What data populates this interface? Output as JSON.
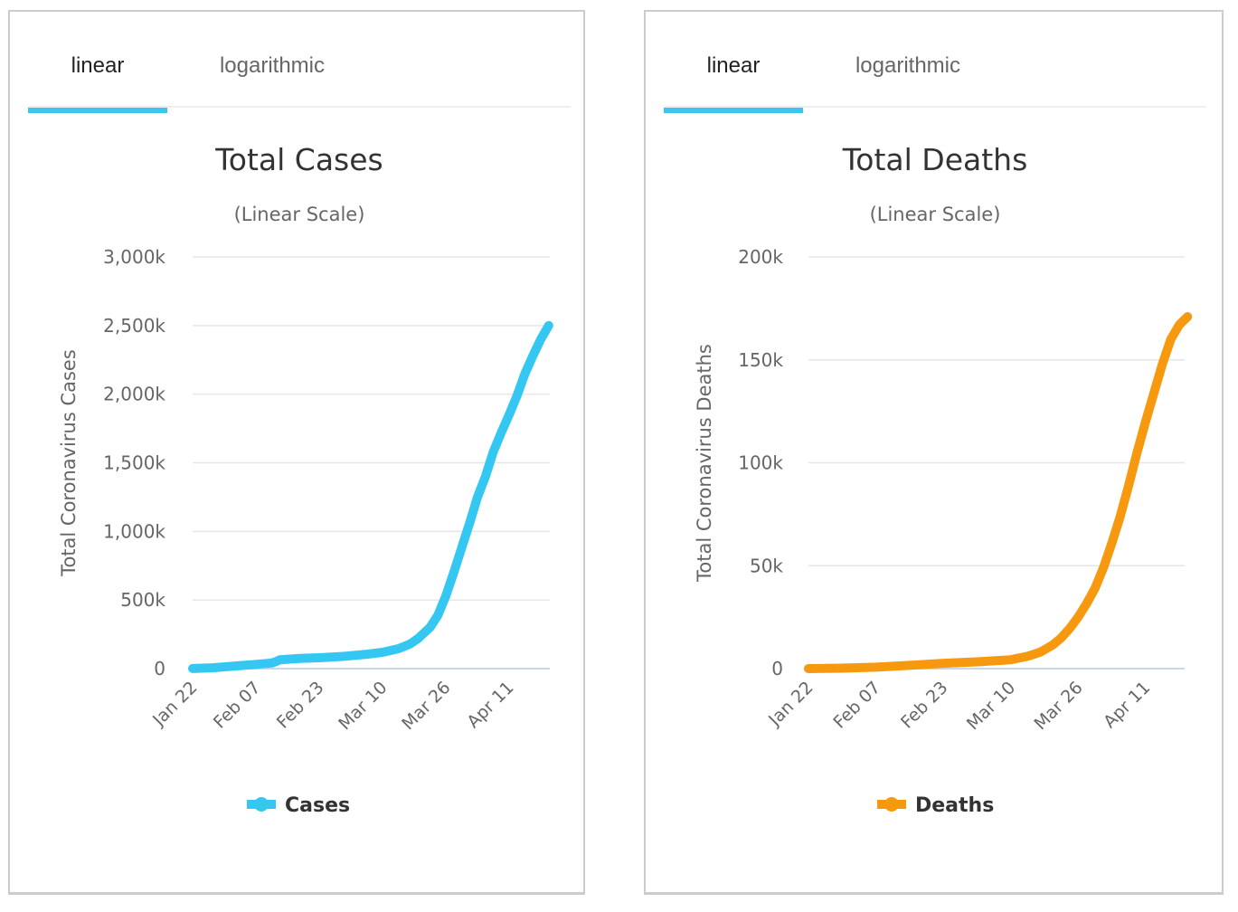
{
  "panels": [
    {
      "tabs": [
        {
          "label": "linear",
          "active": true
        },
        {
          "label": "logarithmic",
          "active": false
        }
      ]
    },
    {
      "tabs": [
        {
          "label": "linear",
          "active": true
        },
        {
          "label": "logarithmic",
          "active": false
        }
      ]
    }
  ],
  "chart_data": [
    {
      "type": "line",
      "title": "Total Cases",
      "subtitle": "(Linear Scale)",
      "xlabel": "",
      "ylabel": "Total Coronavirus Cases",
      "ylim": [
        0,
        3000000
      ],
      "yticks": [
        0,
        500000,
        1000000,
        1500000,
        2000000,
        2500000,
        3000000
      ],
      "ytick_labels": [
        "0",
        "500k",
        "1,000k",
        "1,500k",
        "2,000k",
        "2,500k",
        "3,000k"
      ],
      "xticks": [
        0,
        16,
        32,
        48,
        64,
        80
      ],
      "xtick_labels": [
        "Jan 22",
        "Feb 07",
        "Feb 23",
        "Mar 10",
        "Mar 26",
        "Apr 11"
      ],
      "grid": true,
      "legend": {
        "position": "bottom-center",
        "entries": [
          "Cases"
        ]
      },
      "color": "#33c7f2",
      "series": [
        {
          "name": "Cases",
          "x": [
            0,
            5,
            10,
            16,
            20,
            21,
            22,
            27,
            32,
            38,
            44,
            48,
            52,
            55,
            57,
            60,
            62,
            64,
            66,
            68,
            70,
            72,
            74,
            76,
            78,
            80,
            82,
            84,
            86,
            88,
            90
          ],
          "values": [
            600,
            6000,
            17000,
            31000,
            41000,
            50000,
            64000,
            74000,
            79000,
            89000,
            105000,
            119000,
            145000,
            180000,
            220000,
            300000,
            390000,
            530000,
            700000,
            880000,
            1060000,
            1250000,
            1400000,
            1580000,
            1720000,
            1850000,
            1990000,
            2150000,
            2280000,
            2400000,
            2500000
          ]
        }
      ]
    },
    {
      "type": "line",
      "title": "Total Deaths",
      "subtitle": "(Linear Scale)",
      "xlabel": "",
      "ylabel": "Total Coronavirus Deaths",
      "ylim": [
        0,
        200000
      ],
      "yticks": [
        0,
        50000,
        100000,
        150000,
        200000
      ],
      "ytick_labels": [
        "0",
        "50k",
        "100k",
        "150k",
        "200k"
      ],
      "xticks": [
        0,
        16,
        32,
        48,
        64,
        80
      ],
      "xtick_labels": [
        "Jan 22",
        "Feb 07",
        "Feb 23",
        "Mar 10",
        "Mar 26",
        "Apr 11"
      ],
      "grid": true,
      "legend": {
        "position": "bottom-center",
        "entries": [
          "Deaths"
        ]
      },
      "color": "#f7990f",
      "series": [
        {
          "name": "Deaths",
          "x": [
            0,
            8,
            16,
            24,
            32,
            40,
            48,
            52,
            55,
            58,
            60,
            62,
            64,
            66,
            68,
            70,
            72,
            74,
            76,
            78,
            80,
            82,
            84,
            86,
            88,
            90
          ],
          "values": [
            20,
            200,
            700,
            1600,
            2600,
            3300,
            4300,
            6000,
            8000,
            11500,
            15000,
            19500,
            25000,
            31500,
            39000,
            49000,
            61000,
            74000,
            89000,
            105000,
            120000,
            134000,
            148000,
            160000,
            167000,
            171000
          ]
        }
      ]
    }
  ]
}
